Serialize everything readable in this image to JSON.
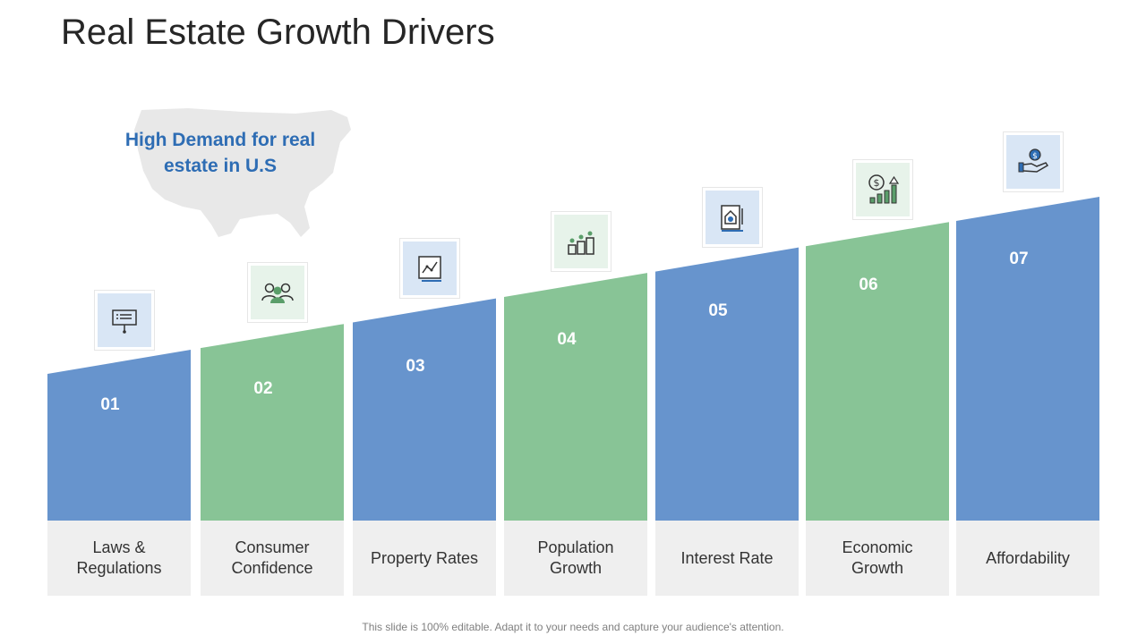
{
  "slide": {
    "title": "Real Estate Growth Drivers",
    "callout": "High Demand for real estate in U.S",
    "footer": "This slide is 100% editable. Adapt it to your needs and capture your audience's attention."
  },
  "colors": {
    "blue": "#5b8cc9",
    "green": "#7fc08e",
    "callout": "#2e6db4"
  },
  "drivers": [
    {
      "number": "01",
      "label": "Laws & Regulations",
      "icon": "presentation-board-icon",
      "color": "blue"
    },
    {
      "number": "02",
      "label": "Consumer Confidence",
      "icon": "people-group-icon",
      "color": "green"
    },
    {
      "number": "03",
      "label": "Property Rates",
      "icon": "rate-chart-icon",
      "color": "blue"
    },
    {
      "number": "04",
      "label": "Population Growth",
      "icon": "population-bars-icon",
      "color": "green"
    },
    {
      "number": "05",
      "label": "Interest Rate",
      "icon": "house-document-icon",
      "color": "blue"
    },
    {
      "number": "06",
      "label": "Economic Growth",
      "icon": "dollar-growth-icon",
      "color": "green"
    },
    {
      "number": "07",
      "label": "Affordability",
      "icon": "hand-coin-icon",
      "color": "blue"
    }
  ]
}
